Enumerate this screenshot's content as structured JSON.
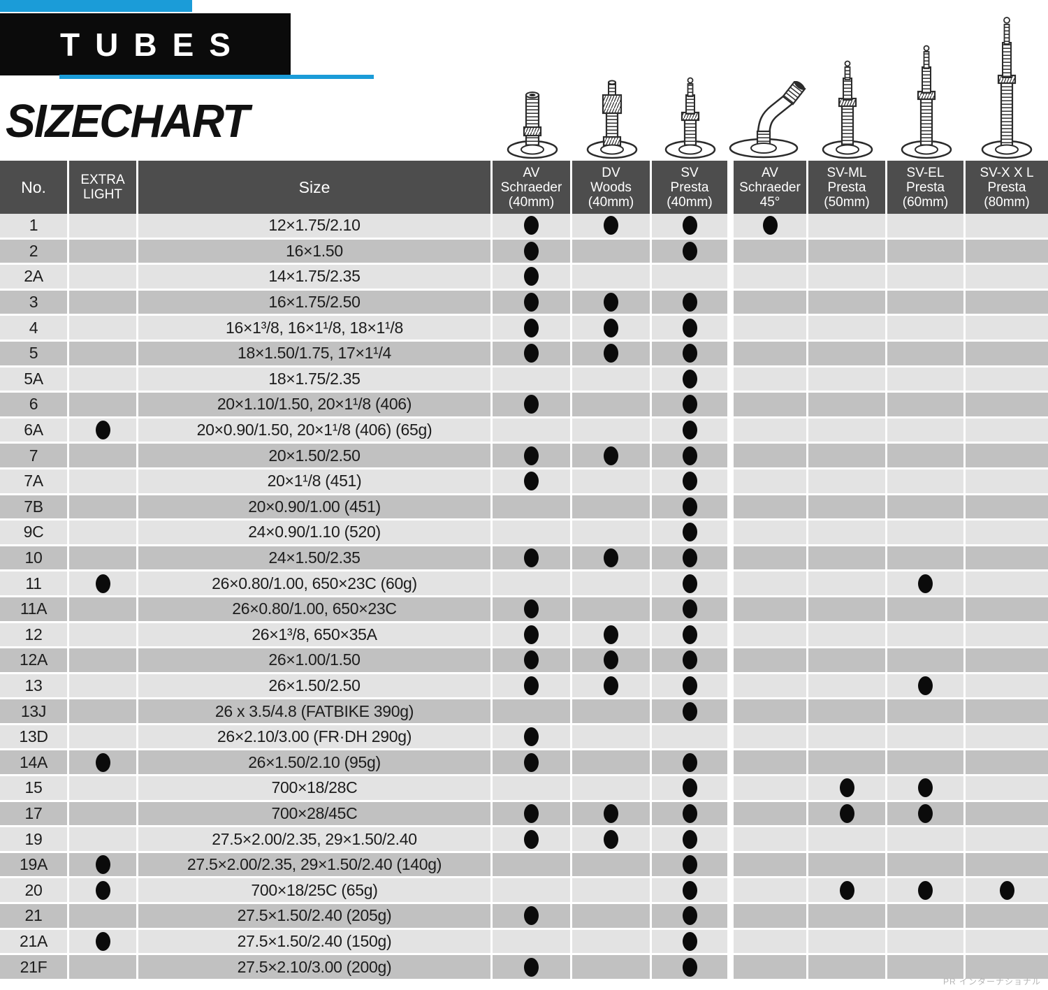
{
  "header": {
    "tag": "TUBES",
    "title": "SIZECHART",
    "accent_color": "#1b9cd8",
    "tag_bg": "#0b0b0b"
  },
  "watermark": "PR インターナショナル",
  "table": {
    "header_bg": "#4d4d4d",
    "row_light": "#e3e3e3",
    "row_dark": "#c1c1c1",
    "dot_color": "#0b0b0b",
    "dot_glyph": "●",
    "columns": [
      {
        "id": "no",
        "label": "No."
      },
      {
        "id": "xl",
        "label": "EXTRA\nLIGHT"
      },
      {
        "id": "size",
        "label": "Size"
      },
      {
        "id": "av40",
        "label": "AV\nSchraeder\n(40mm)",
        "valve_icon": "av-schraeder-40mm-valve-icon"
      },
      {
        "id": "dv",
        "label": "DV\nWoods\n(40mm)",
        "valve_icon": "dv-woods-40mm-valve-icon"
      },
      {
        "id": "sv",
        "label": "SV\nPresta\n(40mm)",
        "valve_icon": "sv-presta-40mm-valve-icon"
      },
      {
        "id": "av45",
        "label": "AV\nSchraeder\n45°",
        "valve_icon": "av-schraeder-45deg-valve-icon"
      },
      {
        "id": "svml",
        "label": "SV-ML\nPresta\n(50mm)",
        "valve_icon": "sv-ml-presta-50mm-valve-icon"
      },
      {
        "id": "svel",
        "label": "SV-EL\nPresta\n(60mm)",
        "valve_icon": "sv-el-presta-60mm-valve-icon"
      },
      {
        "id": "svxxl",
        "label": "SV-X X L\nPresta\n(80mm)",
        "valve_icon": "sv-xxl-presta-80mm-valve-icon"
      }
    ],
    "rows": [
      {
        "no": "1",
        "xl": false,
        "size": "12×1.75/2.10",
        "dots": [
          "av40",
          "dv",
          "sv",
          "av45"
        ]
      },
      {
        "no": "2",
        "xl": false,
        "size": "16×1.50",
        "dots": [
          "av40",
          "sv"
        ]
      },
      {
        "no": "2A",
        "xl": false,
        "size": "14×1.75/2.35",
        "dots": [
          "av40"
        ]
      },
      {
        "no": "3",
        "xl": false,
        "size": "16×1.75/2.50",
        "dots": [
          "av40",
          "dv",
          "sv"
        ]
      },
      {
        "no": "4",
        "xl": false,
        "size": "16×1³/8,  16×1¹/8, 18×1¹/8",
        "dots": [
          "av40",
          "dv",
          "sv"
        ]
      },
      {
        "no": "5",
        "xl": false,
        "size": "18×1.50/1.75, 17×1¹/4",
        "dots": [
          "av40",
          "dv",
          "sv"
        ]
      },
      {
        "no": "5A",
        "xl": false,
        "size": "18×1.75/2.35",
        "dots": [
          "sv"
        ]
      },
      {
        "no": "6",
        "xl": false,
        "size": "20×1.10/1.50,  20×1¹/8 (406)",
        "dots": [
          "av40",
          "sv"
        ]
      },
      {
        "no": "6A",
        "xl": true,
        "size": "20×0.90/1.50,  20×1¹/8 (406) (65g)",
        "dots": [
          "sv"
        ]
      },
      {
        "no": "7",
        "xl": false,
        "size": "20×1.50/2.50",
        "dots": [
          "av40",
          "dv",
          "sv"
        ]
      },
      {
        "no": "7A",
        "xl": false,
        "size": "20×1¹/8 (451)",
        "dots": [
          "av40",
          "sv"
        ]
      },
      {
        "no": "7B",
        "xl": false,
        "size": "20×0.90/1.00 (451)",
        "dots": [
          "sv"
        ]
      },
      {
        "no": "9C",
        "xl": false,
        "size": "24×0.90/1.10 (520)",
        "dots": [
          "sv"
        ]
      },
      {
        "no": "10",
        "xl": false,
        "size": "24×1.50/2.35",
        "dots": [
          "av40",
          "dv",
          "sv"
        ]
      },
      {
        "no": "11",
        "xl": true,
        "size": "26×0.80/1.00,  650×23C (60g)",
        "dots": [
          "sv",
          "svel"
        ]
      },
      {
        "no": "11A",
        "xl": false,
        "size": "26×0.80/1.00,  650×23C",
        "dots": [
          "av40",
          "sv"
        ]
      },
      {
        "no": "12",
        "xl": false,
        "size": "26×1³/8,  650×35A",
        "dots": [
          "av40",
          "dv",
          "sv"
        ]
      },
      {
        "no": "12A",
        "xl": false,
        "size": "26×1.00/1.50",
        "dots": [
          "av40",
          "dv",
          "sv"
        ]
      },
      {
        "no": "13",
        "xl": false,
        "size": "26×1.50/2.50",
        "dots": [
          "av40",
          "dv",
          "sv",
          "svel"
        ]
      },
      {
        "no": "13J",
        "xl": false,
        "size": "26 x 3.5/4.8 (FATBIKE 390g)",
        "dots": [
          "sv"
        ]
      },
      {
        "no": "13D",
        "xl": false,
        "size": "26×2.10/3.00 (FR·DH 290g)",
        "dots": [
          "av40"
        ]
      },
      {
        "no": "14A",
        "xl": true,
        "size": "26×1.50/2.10 (95g)",
        "dots": [
          "av40",
          "sv"
        ]
      },
      {
        "no": "15",
        "xl": false,
        "size": "700×18/28C",
        "dots": [
          "sv",
          "svml",
          "svel"
        ]
      },
      {
        "no": "17",
        "xl": false,
        "size": "700×28/45C",
        "dots": [
          "av40",
          "dv",
          "sv",
          "svml",
          "svel"
        ]
      },
      {
        "no": "19",
        "xl": false,
        "size": "27.5×2.00/2.35, 29×1.50/2.40",
        "dots": [
          "av40",
          "dv",
          "sv"
        ]
      },
      {
        "no": "19A",
        "xl": true,
        "size": "27.5×2.00/2.35, 29×1.50/2.40 (140g)",
        "dots": [
          "sv"
        ]
      },
      {
        "no": "20",
        "xl": true,
        "size": "700×18/25C (65g)",
        "dots": [
          "sv",
          "svml",
          "svel",
          "svxxl"
        ]
      },
      {
        "no": "21",
        "xl": false,
        "size": "27.5×1.50/2.40 (205g)",
        "dots": [
          "av40",
          "sv"
        ]
      },
      {
        "no": "21A",
        "xl": true,
        "size": "27.5×1.50/2.40 (150g)",
        "dots": [
          "sv"
        ]
      },
      {
        "no": "21F",
        "xl": false,
        "size": "27.5×2.10/3.00 (200g)",
        "dots": [
          "av40",
          "sv"
        ]
      }
    ]
  }
}
